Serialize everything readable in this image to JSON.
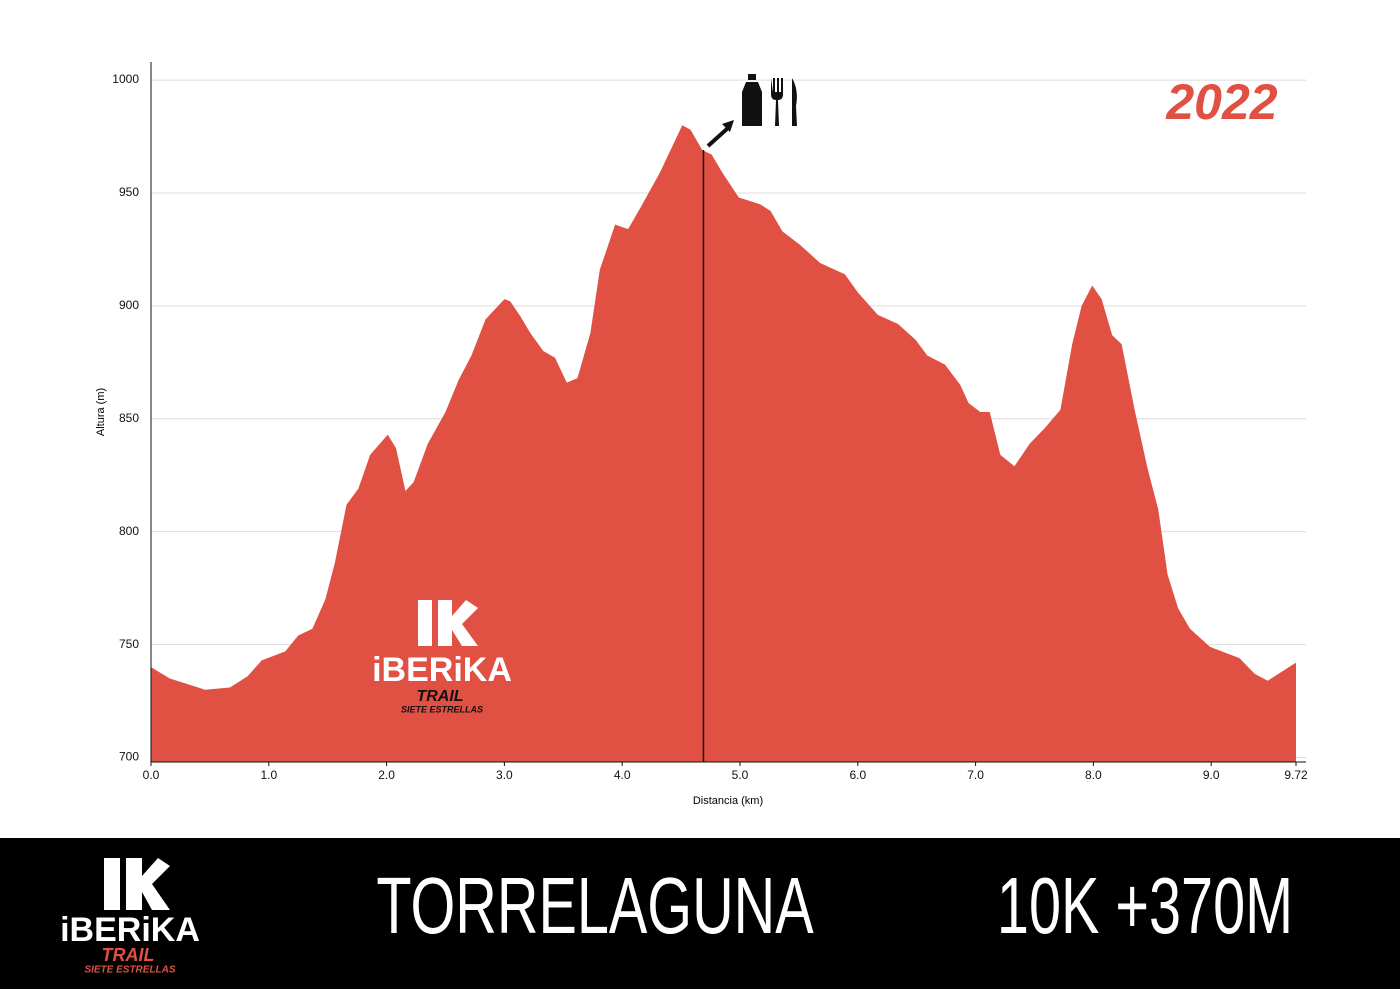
{
  "chart_data": {
    "type": "area",
    "year": "2022",
    "ylabel": "Altura (m)",
    "xlabel": "Distancia (km)",
    "color": "#e05043",
    "xlim": [
      0,
      9.72
    ],
    "ylim": [
      698,
      1008
    ],
    "xticks": [
      {
        "value": 0,
        "label": "0.0"
      },
      {
        "value": 1,
        "label": "1.0"
      },
      {
        "value": 2,
        "label": "2.0"
      },
      {
        "value": 3,
        "label": "3.0"
      },
      {
        "value": 4,
        "label": "4.0"
      },
      {
        "value": 5,
        "label": "5.0"
      },
      {
        "value": 6,
        "label": "6.0"
      },
      {
        "value": 7,
        "label": "7.0"
      },
      {
        "value": 8,
        "label": "8.0"
      },
      {
        "value": 9,
        "label": "9.0"
      },
      9.72
    ],
    "yticks": [
      700,
      750,
      800,
      850,
      900,
      950,
      1000
    ],
    "grid": true,
    "aid_station_km": 4.69,
    "x": [
      0,
      0.16,
      0.46,
      0.67,
      0.82,
      0.94,
      1.14,
      1.25,
      1.37,
      1.48,
      1.56,
      1.66,
      1.76,
      1.86,
      2.01,
      2.08,
      2.16,
      2.23,
      2.35,
      2.5,
      2.61,
      2.72,
      2.84,
      3.0,
      3.05,
      3.14,
      3.22,
      3.33,
      3.43,
      3.53,
      3.62,
      3.73,
      3.81,
      3.94,
      4.05,
      4.15,
      4.32,
      4.51,
      4.58,
      4.68,
      4.76,
      4.85,
      4.99,
      5.17,
      5.26,
      5.36,
      5.51,
      5.68,
      5.89,
      6.0,
      6.17,
      6.34,
      6.49,
      6.59,
      6.74,
      6.87,
      6.94,
      7.04,
      7.12,
      7.21,
      7.33,
      7.46,
      7.59,
      7.72,
      7.82,
      7.9,
      7.99,
      8.07,
      8.16,
      8.24,
      8.35,
      8.46,
      8.55,
      8.63,
      8.72,
      8.82,
      8.99,
      9.24,
      9.37,
      9.48,
      9.6,
      9.72
    ],
    "values": [
      740,
      735,
      730,
      731,
      736,
      743,
      747,
      754,
      757,
      770,
      786,
      812,
      819,
      834,
      843,
      837,
      818,
      822,
      839,
      853,
      867,
      878,
      894,
      903,
      902,
      895,
      888,
      880,
      877,
      866,
      868,
      888,
      916,
      936,
      934,
      943,
      959,
      980,
      978,
      969,
      967,
      959,
      948,
      945,
      942,
      933,
      927,
      919,
      914,
      906,
      896,
      892,
      885,
      878,
      874,
      865,
      857,
      853,
      853,
      834,
      829,
      839,
      846,
      854,
      883,
      900,
      909,
      903,
      887,
      883,
      854,
      828,
      810,
      781,
      766,
      757,
      749,
      744,
      737,
      734,
      738,
      742
    ]
  },
  "footer": {
    "title": "TORRELAGUNA",
    "stats": "10K +370M"
  },
  "logo": {
    "name": "iBERiKA",
    "sub": "TRAIL",
    "tagline": "SIETE ESTRELLAS"
  }
}
